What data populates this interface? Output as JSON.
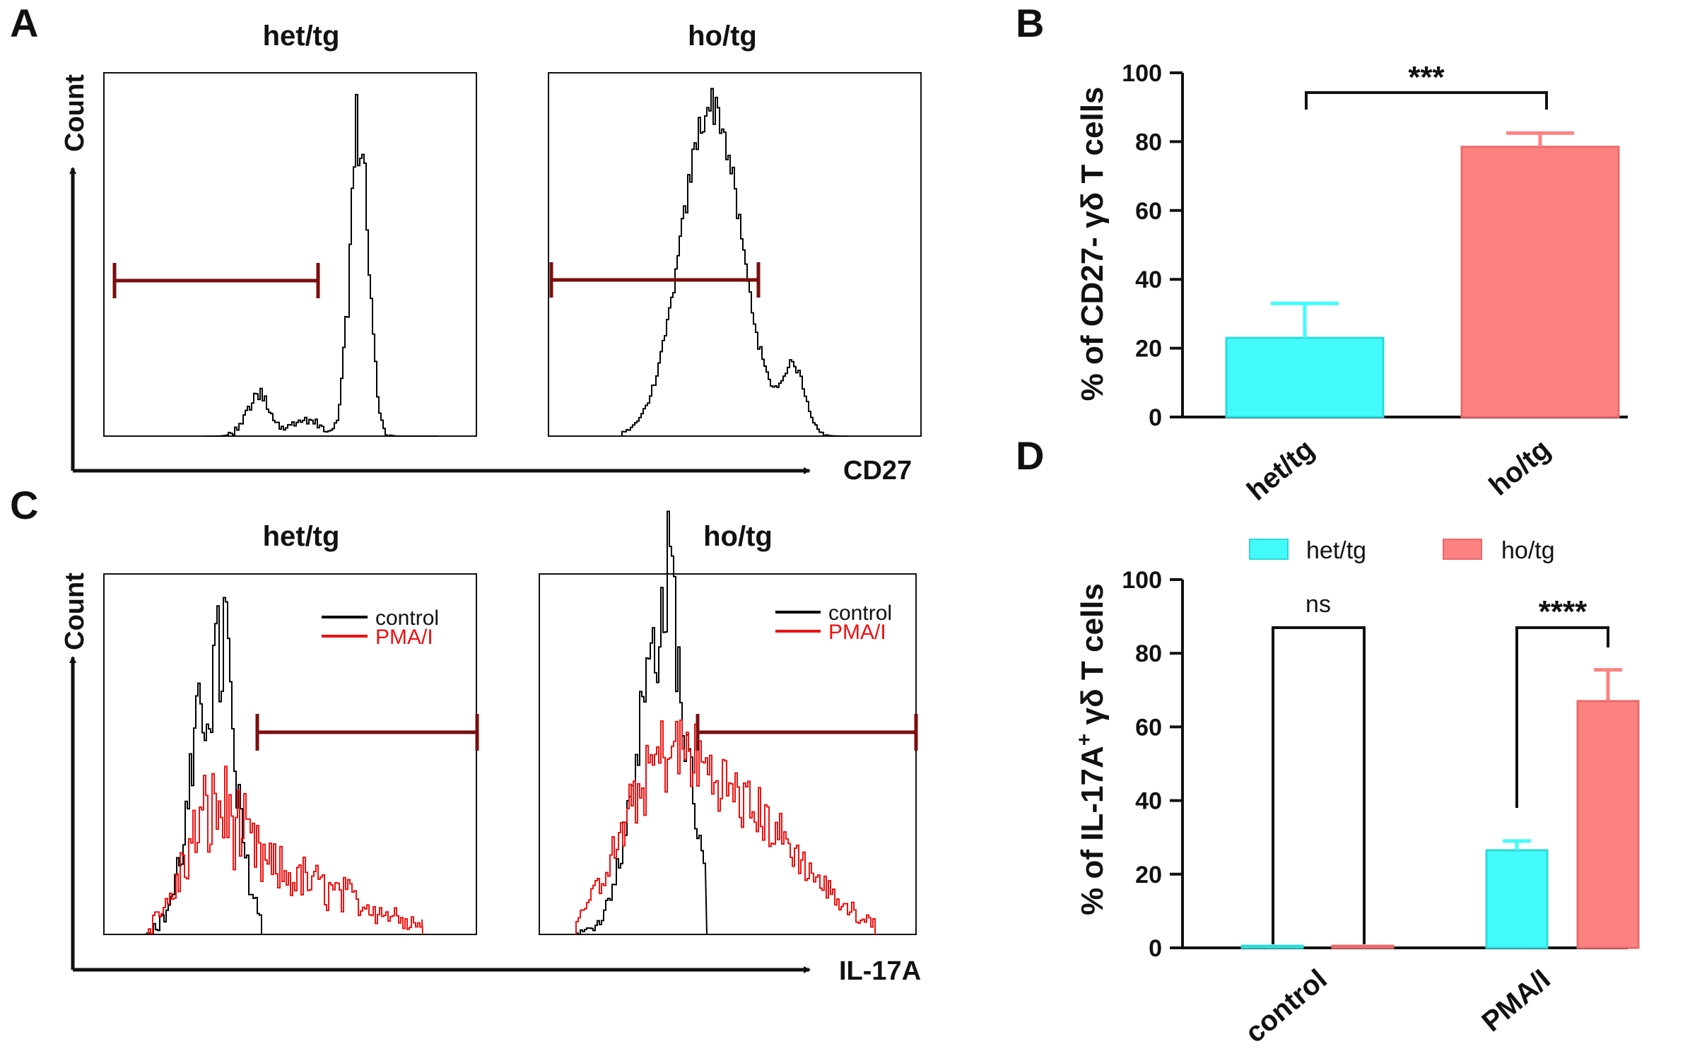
{
  "colors": {
    "het_tg": "#44FBFB",
    "ho_tg": "#FC8282",
    "gate": "#7A0E0E",
    "control_line": "#000000",
    "pma_line": "#EE1111"
  },
  "panels": {
    "A": "A",
    "B": "B",
    "C": "C",
    "D": "D"
  },
  "panel_a": {
    "count_label": "Count",
    "x_marker": "CD27",
    "titles": [
      "het/tg",
      "ho/tg"
    ]
  },
  "panel_c": {
    "count_label": "Count",
    "x_marker": "IL-17A",
    "titles": [
      "het/tg",
      "ho/tg"
    ],
    "legend": [
      "control",
      "PMA/I"
    ]
  },
  "chart_data": [
    {
      "id": "B",
      "type": "bar",
      "ylabel": "% of CD27- γδ T cells",
      "ylim": [
        0,
        100
      ],
      "yticks": [
        0,
        20,
        40,
        60,
        80,
        100
      ],
      "categories": [
        "het/tg",
        "ho/tg"
      ],
      "values": [
        23,
        78.5
      ],
      "errors": [
        10,
        4
      ],
      "significance": [
        {
          "between": [
            "het/tg",
            "ho/tg"
          ],
          "label": "***"
        }
      ]
    },
    {
      "id": "D",
      "type": "bar",
      "ylabel": "% of IL-17A+ γδ T cells",
      "ylim": [
        0,
        100
      ],
      "yticks": [
        0,
        20,
        40,
        60,
        80,
        100
      ],
      "categories": [
        "control",
        "PMA/I"
      ],
      "series": [
        {
          "name": "het/tg",
          "values": [
            0.5,
            26.5
          ],
          "errors": [
            0,
            2.5
          ]
        },
        {
          "name": "ho/tg",
          "values": [
            0.5,
            67
          ],
          "errors": [
            0,
            8.5
          ]
        }
      ],
      "legend": "top",
      "significance": [
        {
          "category": "control",
          "label": "ns"
        },
        {
          "category": "PMA/I",
          "label": "****"
        }
      ]
    }
  ]
}
